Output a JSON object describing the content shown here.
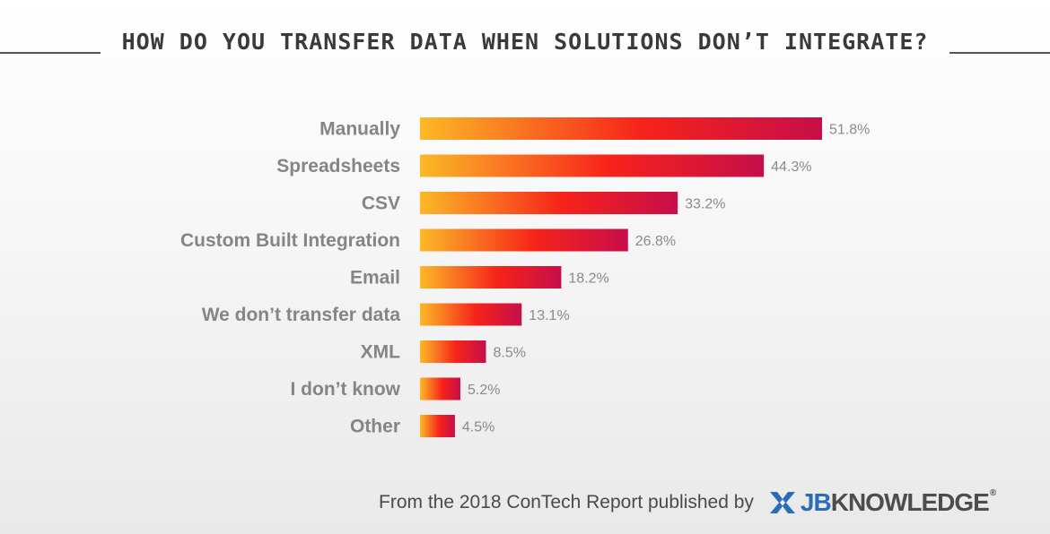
{
  "title": "HOW DO YOU TRANSFER DATA WHEN SOLUTIONS DON’T INTEGRATE?",
  "chart_data": {
    "type": "bar",
    "orientation": "horizontal",
    "categories": [
      "Manually",
      "Spreadsheets",
      "CSV",
      "Custom Built Integration",
      "Email",
      "We don’t transfer data",
      "XML",
      "I don’t know",
      "Other"
    ],
    "values": [
      51.8,
      44.3,
      33.2,
      26.8,
      18.2,
      13.1,
      8.5,
      5.2,
      4.5
    ],
    "value_labels": [
      "51.8%",
      "44.3%",
      "33.2%",
      "26.8%",
      "18.2%",
      "13.1%",
      "8.5%",
      "5.2%",
      "4.5%"
    ],
    "xlim": [
      0,
      51.8
    ],
    "grid": false,
    "legend": "none",
    "bar_gradient": [
      "#fbb927",
      "#f7231a",
      "#c70e4a"
    ]
  },
  "footer": {
    "text": "From the 2018 ConTech Report published by",
    "logo_jb": "JB",
    "logo_rest": "KNOWLEDGE",
    "logo_reg": "®"
  },
  "colors": {
    "title": "#3a3a3a",
    "label": "#858585",
    "logo_blue": "#2b6cb8"
  },
  "icons": {
    "logo": "jbknowledge-logo-icon"
  }
}
